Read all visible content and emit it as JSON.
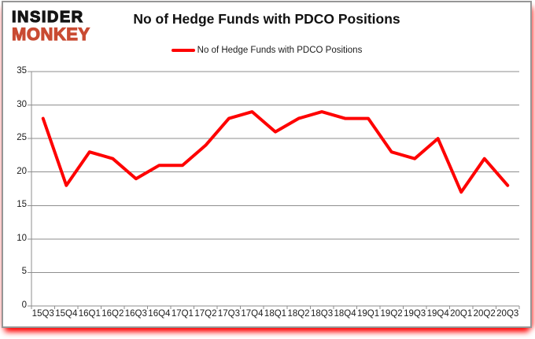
{
  "logo": {
    "line1": "INSIDER",
    "line2": "MONKEY"
  },
  "header": {
    "title": "No of Hedge Funds with PDCO Positions"
  },
  "legend": {
    "label": "No of Hedge Funds with PDCO Positions"
  },
  "colors": {
    "logo_black": "#151515",
    "logo_red": "#c94b33",
    "line": "#fe0000",
    "grid": "#8e8e8e",
    "axis": "#8e8e8e",
    "card_border": "#969696",
    "glow": "#ff0000"
  },
  "chart_data": {
    "type": "line",
    "title": "No of Hedge Funds with PDCO Positions",
    "categories": [
      "15Q3",
      "15Q4",
      "16Q1",
      "16Q2",
      "16Q3",
      "16Q4",
      "17Q1",
      "17Q2",
      "17Q3",
      "17Q4",
      "18Q1",
      "18Q2",
      "18Q3",
      "18Q4",
      "19Q1",
      "19Q2",
      "19Q3",
      "19Q4",
      "20Q1",
      "20Q2",
      "20Q3"
    ],
    "series": [
      {
        "name": "No of Hedge Funds with PDCO Positions",
        "values": [
          28,
          18,
          23,
          22,
          19,
          21,
          21,
          24,
          28,
          29,
          26,
          28,
          29,
          28,
          28,
          23,
          22,
          25,
          17,
          22,
          18
        ]
      }
    ],
    "xlabel": "",
    "ylabel": "",
    "ylim": [
      0,
      35
    ],
    "yticks": [
      0,
      5,
      10,
      15,
      20,
      25,
      30,
      35
    ],
    "grid": "horizontal",
    "legend_position": "top-center",
    "line_color": "#fe0000"
  }
}
